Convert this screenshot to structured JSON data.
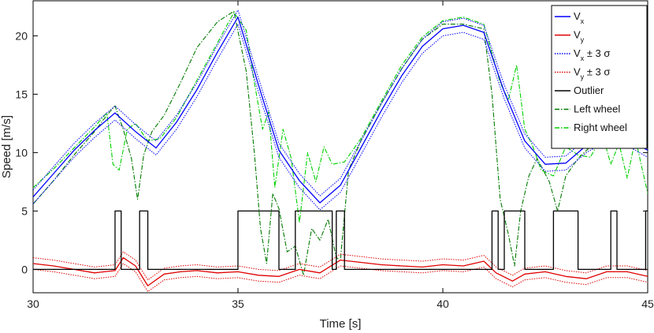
{
  "chart_data": {
    "type": "line",
    "xlabel": "Time [s]",
    "ylabel": "Speed [m/s]",
    "xlim": [
      30,
      45
    ],
    "ylim": [
      -2,
      23
    ],
    "xticks": [
      "30",
      "35",
      "40",
      "45"
    ],
    "yticks": [
      "0",
      "5",
      "10",
      "15",
      "20"
    ],
    "grid": false,
    "legend_position": "top-right",
    "legend": [
      {
        "main": "V",
        "sub": "x",
        "suffix": "",
        "color": "#0000ff",
        "dash": "solid"
      },
      {
        "main": "V",
        "sub": "y",
        "suffix": "",
        "color": "#e00000",
        "dash": "solid"
      },
      {
        "main": "V",
        "sub": "x",
        "suffix": " ± 3 σ",
        "color": "#0000ff",
        "dash": "dotted"
      },
      {
        "main": "V",
        "sub": "y",
        "suffix": " ± 3 σ",
        "color": "#e00000",
        "dash": "dotted"
      },
      {
        "main": "Outlier",
        "sub": "",
        "suffix": "",
        "color": "#000000",
        "dash": "solid"
      },
      {
        "main": "Left wheel",
        "sub": "",
        "suffix": "",
        "color": "#007a00",
        "dash": "dashdot"
      },
      {
        "main": "Right wheel",
        "sub": "",
        "suffix": "",
        "color": "#00d000",
        "dash": "dashdot"
      }
    ],
    "series": [
      {
        "key": "vx",
        "color": "#0000ff",
        "width": 1.3,
        "dash": "solid",
        "x": [
          30,
          30.5,
          31,
          31.5,
          32,
          32.5,
          33,
          33.5,
          34,
          34.5,
          35,
          35.5,
          36,
          36.5,
          37,
          37.5,
          38,
          38.5,
          39,
          39.5,
          40,
          40.5,
          41,
          41.5,
          42,
          42.5,
          43,
          43.5,
          44,
          44.5,
          45
        ],
        "y": [
          6.2,
          8.2,
          10.2,
          11.9,
          13.4,
          11.8,
          10.4,
          12.6,
          15.4,
          18.6,
          21.6,
          15.8,
          10.2,
          7.6,
          5.7,
          7.2,
          10.4,
          13.6,
          16.6,
          19.1,
          20.6,
          20.9,
          20.3,
          15.2,
          11.0,
          9.0,
          9.1,
          10.6,
          11.6,
          11.2,
          10.2
        ]
      },
      {
        "key": "vx_upper",
        "color": "#0000ff",
        "width": 1,
        "dash": "dotted",
        "x": [
          30,
          30.5,
          31,
          31.5,
          32,
          32.5,
          33,
          33.5,
          34,
          34.5,
          35,
          35.5,
          36,
          36.5,
          37,
          37.5,
          38,
          38.5,
          39,
          39.5,
          40,
          40.5,
          41,
          41.5,
          42,
          42.5,
          43,
          43.5,
          44,
          44.5,
          45
        ],
        "y": [
          6.8,
          8.8,
          10.8,
          12.5,
          14.0,
          12.4,
          11.0,
          13.2,
          16.0,
          19.2,
          22.2,
          16.4,
          10.8,
          8.2,
          6.3,
          7.8,
          11.0,
          14.2,
          17.2,
          19.7,
          21.2,
          21.5,
          20.9,
          15.8,
          11.6,
          9.6,
          9.7,
          11.2,
          12.2,
          11.8,
          10.8
        ]
      },
      {
        "key": "vx_lower",
        "color": "#0000ff",
        "width": 1,
        "dash": "dotted",
        "x": [
          30,
          30.5,
          31,
          31.5,
          32,
          32.5,
          33,
          33.5,
          34,
          34.5,
          35,
          35.5,
          36,
          36.5,
          37,
          37.5,
          38,
          38.5,
          39,
          39.5,
          40,
          40.5,
          41,
          41.5,
          42,
          42.5,
          43,
          43.5,
          44,
          44.5,
          45
        ],
        "y": [
          5.6,
          7.6,
          9.6,
          11.3,
          12.8,
          11.2,
          9.8,
          12.0,
          14.8,
          18.0,
          21.0,
          15.2,
          9.6,
          7.0,
          5.1,
          6.6,
          9.8,
          13.0,
          16.0,
          18.5,
          20.0,
          20.3,
          19.7,
          14.6,
          10.4,
          8.4,
          8.5,
          10.0,
          11.0,
          10.6,
          9.6
        ]
      },
      {
        "key": "vy",
        "color": "#e00000",
        "width": 1.3,
        "dash": "solid",
        "x": [
          30,
          30.5,
          31,
          31.5,
          32,
          32.2,
          32.5,
          32.8,
          33.2,
          33.6,
          34,
          34.5,
          35,
          35.5,
          36,
          36.5,
          37,
          37.5,
          38,
          38.5,
          39,
          39.5,
          40,
          40.5,
          41,
          41.3,
          41.7,
          42,
          42.5,
          43,
          43.5,
          44,
          44.5,
          45
        ],
        "y": [
          0.5,
          0.3,
          0.0,
          -0.3,
          -0.1,
          1.0,
          0.3,
          -1.4,
          -0.4,
          -0.2,
          -0.1,
          -0.3,
          -0.2,
          -0.5,
          -0.6,
          0.0,
          -0.3,
          0.8,
          0.6,
          0.4,
          0.3,
          0.2,
          0.4,
          0.3,
          0.7,
          -0.3,
          -1.0,
          -0.4,
          -0.2,
          -0.6,
          -0.8,
          -0.2,
          -0.2,
          -0.6
        ]
      },
      {
        "key": "vy_upper",
        "color": "#e00000",
        "width": 1,
        "dash": "dotted",
        "x": [
          30,
          30.5,
          31,
          31.5,
          32,
          32.2,
          32.5,
          32.8,
          33.2,
          33.6,
          34,
          34.5,
          35,
          35.5,
          36,
          36.5,
          37,
          37.5,
          38,
          38.5,
          39,
          39.5,
          40,
          40.5,
          41,
          41.3,
          41.7,
          42,
          42.5,
          43,
          43.5,
          44,
          44.5,
          45
        ],
        "y": [
          1.0,
          0.8,
          0.5,
          0.2,
          0.4,
          1.5,
          0.8,
          -0.9,
          0.1,
          0.3,
          0.4,
          0.2,
          0.3,
          0.0,
          -0.1,
          0.5,
          0.2,
          1.3,
          1.1,
          0.9,
          0.8,
          0.7,
          0.9,
          0.8,
          1.2,
          0.2,
          -0.5,
          0.1,
          0.3,
          -0.1,
          -0.3,
          0.3,
          0.3,
          -0.1
        ]
      },
      {
        "key": "vy_lower",
        "color": "#e00000",
        "width": 1,
        "dash": "dotted",
        "x": [
          30,
          30.5,
          31,
          31.5,
          32,
          32.2,
          32.5,
          32.8,
          33.2,
          33.6,
          34,
          34.5,
          35,
          35.5,
          36,
          36.5,
          37,
          37.5,
          38,
          38.5,
          39,
          39.5,
          40,
          40.5,
          41,
          41.3,
          41.7,
          42,
          42.5,
          43,
          43.5,
          44,
          44.5,
          45
        ],
        "y": [
          0.0,
          -0.2,
          -0.5,
          -0.8,
          -0.6,
          0.5,
          -0.2,
          -1.9,
          -0.9,
          -0.7,
          -0.6,
          -0.8,
          -0.7,
          -1.0,
          -1.1,
          -0.5,
          -0.8,
          0.3,
          0.1,
          -0.1,
          -0.2,
          -0.3,
          -0.1,
          -0.2,
          0.2,
          -0.8,
          -1.5,
          -0.9,
          -0.7,
          -1.1,
          -1.3,
          -0.7,
          -0.7,
          -1.1
        ]
      },
      {
        "key": "outlier",
        "color": "#000000",
        "width": 1.3,
        "dash": "solid",
        "step": true,
        "x": [
          30,
          32,
          32,
          32.15,
          32.15,
          32.6,
          32.6,
          32.8,
          32.8,
          35.0,
          35.0,
          36.0,
          36.0,
          36.4,
          36.4,
          37.3,
          37.3,
          37.4,
          37.4,
          37.6,
          37.6,
          41.2,
          41.2,
          41.35,
          41.35,
          41.5,
          41.5,
          42.0,
          42.0,
          42.7,
          42.7,
          43.3,
          43.3,
          44.1,
          44.1,
          44.25,
          44.25,
          44.95,
          44.95,
          45
        ],
        "y": [
          0,
          0,
          5,
          5,
          0,
          0,
          5,
          5,
          0,
          0,
          5,
          5,
          0,
          0,
          5,
          5,
          0,
          0,
          5,
          5,
          0,
          0,
          5,
          5,
          0,
          0,
          5,
          5,
          0,
          0,
          5,
          5,
          0,
          0,
          5,
          5,
          0,
          0,
          5,
          5
        ]
      },
      {
        "key": "left_wheel",
        "color": "#007a00",
        "width": 1.1,
        "dash": "dashdot",
        "x": [
          30,
          30.5,
          31,
          31.5,
          31.8,
          32,
          32.2,
          32.4,
          32.55,
          32.7,
          32.9,
          33.2,
          33.6,
          34,
          34.5,
          34.9,
          35.2,
          35.4,
          35.55,
          35.7,
          35.85,
          36.0,
          36.2,
          36.4,
          36.6,
          36.8,
          37.0,
          37.2,
          37.4,
          37.5,
          37.7,
          38,
          38.5,
          39,
          39.5,
          40,
          40.5,
          41,
          41.2,
          41.4,
          41.6,
          41.75,
          41.9,
          42.1,
          42.3,
          42.6,
          42.8,
          43.0,
          43.3,
          43.6,
          44,
          44.3,
          44.6,
          45
        ],
        "y": [
          5.6,
          7.6,
          9.8,
          11.8,
          13.2,
          14.0,
          12.0,
          9.5,
          6.0,
          9.8,
          11.8,
          13.2,
          16.0,
          19.0,
          21.2,
          22.1,
          17.0,
          10.0,
          3.5,
          0.5,
          6.5,
          5.2,
          1.5,
          2.0,
          -0.5,
          3.5,
          2.5,
          4.3,
          1.0,
          0.8,
          8.5,
          11.0,
          14.2,
          17.2,
          19.7,
          21.0,
          21.0,
          20.6,
          15.0,
          6.0,
          3.0,
          0.3,
          5.0,
          8.0,
          9.5,
          7.5,
          5.0,
          8.0,
          9.5,
          10.5,
          11.2,
          10.6,
          11.2,
          11.0
        ]
      },
      {
        "key": "right_wheel",
        "color": "#00d000",
        "width": 1.1,
        "dash": "dashdot",
        "x": [
          30,
          30.5,
          31,
          31.5,
          31.8,
          31.95,
          32.1,
          32.3,
          32.5,
          32.8,
          33.1,
          33.5,
          34,
          34.5,
          34.9,
          35.2,
          35.4,
          35.6,
          35.75,
          35.9,
          36.1,
          36.3,
          36.5,
          36.7,
          36.9,
          37.1,
          37.3,
          37.6,
          38,
          38.5,
          39,
          39.5,
          40,
          40.5,
          41,
          41.2,
          41.4,
          41.6,
          41.8,
          42.0,
          42.2,
          42.4,
          42.7,
          43.0,
          43.3,
          43.6,
          43.9,
          44.1,
          44.3,
          44.5,
          44.7,
          45
        ],
        "y": [
          7.0,
          8.6,
          10.4,
          12.2,
          13.4,
          9.0,
          8.5,
          12.0,
          12.5,
          11.0,
          11.2,
          13.0,
          16.2,
          19.4,
          22.0,
          20.5,
          16.0,
          12.0,
          13.5,
          7.0,
          12.0,
          9.5,
          4.0,
          10.0,
          7.5,
          10.5,
          9.0,
          9.2,
          11.2,
          14.4,
          17.5,
          19.9,
          21.3,
          21.6,
          21.0,
          18.5,
          16.0,
          14.5,
          17.5,
          12.0,
          10.5,
          8.5,
          8.0,
          10.5,
          9.8,
          9.6,
          11.5,
          9.0,
          10.8,
          7.8,
          11.2,
          6.5
        ]
      }
    ]
  }
}
